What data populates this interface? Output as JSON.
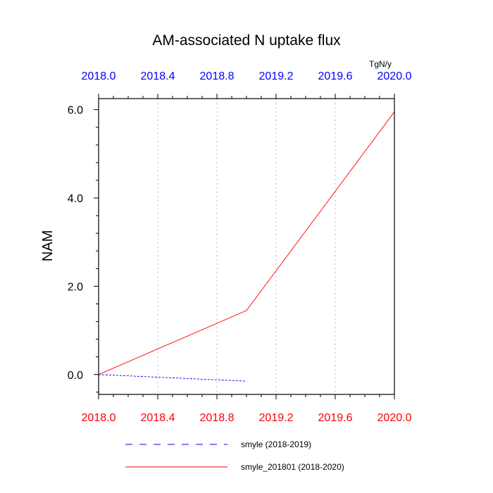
{
  "chart_data": {
    "type": "line",
    "title": "AM-associated N uptake flux",
    "units": "TgN/y",
    "ylabel": "NAM",
    "xlabel": "",
    "xlim": [
      2018.0,
      2020.0
    ],
    "ylim": [
      -0.45,
      6.25
    ],
    "x_ticks": [
      2018.0,
      2018.4,
      2018.8,
      2019.2,
      2019.6,
      2020.0
    ],
    "x_tick_labels": [
      "2018.0",
      "2018.4",
      "2018.8",
      "2019.2",
      "2019.6",
      "2020.0"
    ],
    "y_ticks": [
      0.0,
      2.0,
      4.0,
      6.0
    ],
    "y_tick_labels": [
      "0.0",
      "2.0",
      "4.0",
      "6.0"
    ],
    "top_axis_color": "#0000ff",
    "bottom_axis_color": "#ff0000",
    "grid": "vertical dotted lines at x ticks",
    "legend_placement": "bottom-center",
    "series": [
      {
        "name": "smyle (2018-2019)",
        "color": "#0000ff",
        "style": "dashed",
        "x": [
          2018.0,
          2019.0
        ],
        "values": [
          0.0,
          -0.15
        ]
      },
      {
        "name": "smyle_201801 (2018-2020)",
        "color": "#ff0000",
        "style": "solid",
        "x": [
          2018.0,
          2019.0,
          2020.0
        ],
        "values": [
          0.0,
          1.45,
          5.95
        ]
      }
    ]
  }
}
